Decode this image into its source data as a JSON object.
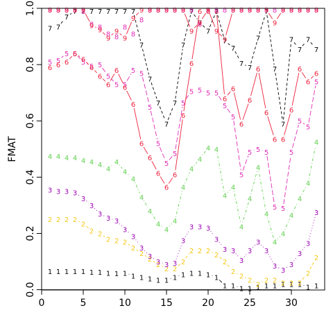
{
  "chart_data": {
    "type": "line",
    "title": "",
    "xlabel": "",
    "ylabel": "FMAT",
    "xlim": [
      0,
      34
    ],
    "ylim": [
      0,
      1
    ],
    "x_ticks": [
      0,
      5,
      10,
      15,
      20,
      25,
      30
    ],
    "y_ticks": [
      0.0,
      0.2,
      0.4,
      0.6,
      0.8,
      1.0
    ],
    "y_tick_labels": [
      "0.0",
      "0.2",
      "0.4",
      "0.6",
      "0.8",
      "1.0"
    ],
    "grid": false,
    "x": [
      1,
      2,
      3,
      4,
      5,
      6,
      7,
      8,
      9,
      10,
      11,
      12,
      13,
      14,
      15,
      16,
      17,
      18,
      19,
      20,
      21,
      22,
      23,
      24,
      25,
      26,
      27,
      28,
      29,
      30,
      31,
      32,
      33
    ],
    "series": [
      {
        "marker": "1",
        "color": "#000000",
        "line": "solid",
        "values": [
          0.065,
          0.065,
          0.065,
          0.065,
          0.065,
          0.063,
          0.063,
          0.06,
          0.058,
          0.06,
          0.05,
          0.045,
          0.04,
          0.035,
          0.035,
          0.045,
          0.055,
          0.06,
          0.06,
          0.055,
          0.045,
          0.015,
          0.015,
          0.005,
          0.005,
          0.01,
          0.015,
          0.015,
          0.02,
          0.02,
          0.02,
          0.01,
          0.015
        ]
      },
      {
        "marker": "2",
        "color": "#f5c710",
        "line": "dashed",
        "values": [
          0.25,
          0.25,
          0.25,
          0.25,
          0.235,
          0.21,
          0.2,
          0.18,
          0.175,
          0.17,
          0.15,
          0.13,
          0.11,
          0.09,
          0.075,
          0.075,
          0.1,
          0.14,
          0.14,
          0.14,
          0.125,
          0.1,
          0.065,
          0.05,
          0.035,
          0.02,
          0.035,
          0.035,
          0.025,
          0.025,
          0.025,
          0.06,
          0.115
        ]
      },
      {
        "marker": "3",
        "color": "#9e04b5",
        "line": "dotted",
        "values": [
          0.355,
          0.35,
          0.35,
          0.345,
          0.325,
          0.3,
          0.27,
          0.255,
          0.245,
          0.215,
          0.19,
          0.15,
          0.12,
          0.1,
          0.09,
          0.095,
          0.175,
          0.225,
          0.225,
          0.22,
          0.18,
          0.145,
          0.14,
          0.105,
          0.14,
          0.17,
          0.14,
          0.085,
          0.07,
          0.09,
          0.13,
          0.165,
          0.275
        ]
      },
      {
        "marker": "4",
        "color": "#61d04f",
        "line": "dotdash",
        "values": [
          0.475,
          0.475,
          0.47,
          0.47,
          0.46,
          0.455,
          0.445,
          0.43,
          0.455,
          0.42,
          0.395,
          0.33,
          0.28,
          0.235,
          0.215,
          0.245,
          0.365,
          0.43,
          0.465,
          0.505,
          0.5,
          0.335,
          0.365,
          0.225,
          0.325,
          0.435,
          0.27,
          0.17,
          0.2,
          0.265,
          0.325,
          0.38,
          0.525
        ]
      },
      {
        "marker": "5",
        "color": "#df2bb5",
        "line": "longdash",
        "values": [
          0.81,
          0.815,
          0.84,
          0.84,
          0.81,
          0.795,
          0.8,
          0.76,
          0.73,
          0.73,
          0.78,
          0.77,
          0.65,
          0.52,
          0.45,
          0.485,
          0.665,
          0.705,
          0.71,
          0.7,
          0.7,
          0.655,
          0.615,
          0.41,
          0.49,
          0.5,
          0.49,
          0.295,
          0.29,
          0.49,
          0.6,
          0.58,
          0.74
        ]
      },
      {
        "marker": "6",
        "color": "#ec1f3b",
        "line": "solid",
        "values": [
          0.79,
          0.8,
          0.81,
          0.84,
          0.82,
          0.79,
          0.76,
          0.73,
          0.78,
          0.72,
          0.66,
          0.52,
          0.47,
          0.415,
          0.365,
          0.41,
          0.62,
          0.805,
          0.99,
          0.99,
          0.99,
          0.68,
          0.715,
          0.59,
          0.675,
          0.785,
          0.63,
          0.535,
          0.535,
          0.64,
          0.785,
          0.74,
          0.77
        ]
      },
      {
        "marker": "7",
        "color": "#000000",
        "line": "dashed",
        "values": [
          0.93,
          0.935,
          0.97,
          0.99,
          0.99,
          0.99,
          0.99,
          0.99,
          0.99,
          0.99,
          0.99,
          0.87,
          0.75,
          0.665,
          0.59,
          0.665,
          0.87,
          0.99,
          0.95,
          0.92,
          0.99,
          0.885,
          0.86,
          0.805,
          0.79,
          0.895,
          0.99,
          0.785,
          0.59,
          0.89,
          0.855,
          0.89,
          0.855
        ]
      },
      {
        "marker": "8",
        "color": "#df2bb5",
        "line": "none",
        "values": [
          0.995,
          0.995,
          0.995,
          0.995,
          0.99,
          0.945,
          0.935,
          0.91,
          0.9,
          0.935,
          0.91,
          0.96,
          0.995,
          0.995,
          0.995,
          0.995,
          0.995,
          0.995,
          0.945,
          0.995,
          0.995,
          0.995,
          0.995,
          0.995,
          0.995,
          0.995,
          0.995,
          0.995,
          0.995,
          0.995,
          0.995,
          0.995,
          0.995
        ]
      },
      {
        "marker": "9",
        "color": "#ec1f3b",
        "line": "solid",
        "values": [
          0.995,
          0.995,
          0.995,
          0.995,
          0.995,
          0.94,
          0.925,
          0.895,
          0.92,
          0.895,
          0.965,
          0.995,
          0.995,
          0.995,
          0.995,
          0.995,
          0.995,
          0.92,
          0.95,
          0.995,
          0.92,
          0.89,
          0.995,
          0.995,
          0.995,
          0.995,
          0.995,
          0.95,
          0.995,
          0.995,
          0.995,
          0.995,
          0.995
        ]
      }
    ]
  }
}
